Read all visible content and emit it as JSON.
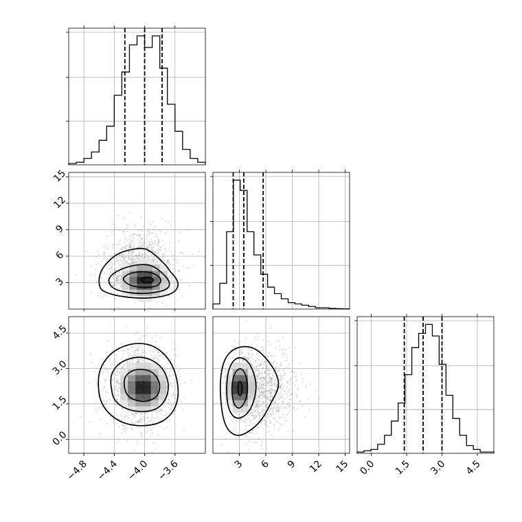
{
  "chart_data": {
    "type": "corner",
    "title": "",
    "grid": true,
    "parameters": [
      {
        "range": [
          -5.0,
          -3.2
        ],
        "ticks": [
          -4.8,
          -4.4,
          -4.0,
          -3.6
        ],
        "tick_labels": [
          "−4.8",
          "−4.4",
          "−4.0",
          "−3.6"
        ],
        "quantiles": [
          -4.26,
          -4.0,
          -3.77
        ],
        "hist": {
          "bin_edges": [
            -5.0,
            -4.9,
            -4.8,
            -4.7,
            -4.6,
            -4.5,
            -4.4,
            -4.3,
            -4.2,
            -4.1,
            -4.0,
            -3.9,
            -3.8,
            -3.7,
            -3.6,
            -3.5,
            -3.4,
            -3.3,
            -3.2
          ],
          "counts": [
            0.01,
            0.02,
            0.05,
            0.1,
            0.19,
            0.3,
            0.54,
            0.72,
            0.93,
            1.0,
            0.91,
            1.0,
            0.75,
            0.47,
            0.26,
            0.12,
            0.05,
            0.02
          ]
        }
      },
      {
        "range": [
          0.0,
          15.5
        ],
        "ticks": [
          3,
          6,
          9,
          12,
          15
        ],
        "tick_labels": [
          "3",
          "6",
          "9",
          "12",
          "15"
        ],
        "quantiles": [
          2.3,
          3.5,
          5.7
        ],
        "hist": {
          "bin_edges": [
            0.0,
            0.78,
            1.55,
            2.33,
            3.1,
            3.88,
            4.65,
            5.43,
            6.2,
            6.98,
            7.75,
            8.53,
            9.3,
            10.08,
            10.85,
            11.63,
            12.4,
            13.18,
            13.95,
            14.73,
            15.5
          ],
          "counts": [
            0.04,
            0.2,
            0.6,
            1.0,
            0.92,
            0.6,
            0.42,
            0.27,
            0.17,
            0.12,
            0.08,
            0.05,
            0.04,
            0.03,
            0.02,
            0.01,
            0.01,
            0.005,
            0.003,
            0.002
          ]
        }
      },
      {
        "range": [
          -0.6,
          5.2
        ],
        "ticks": [
          0.0,
          1.5,
          3.0,
          4.5
        ],
        "tick_labels": [
          "0.0",
          "1.5",
          "3.0",
          "4.5"
        ],
        "quantiles": [
          1.4,
          2.2,
          3.0
        ],
        "hist": {
          "bin_edges": [
            -0.6,
            -0.31,
            -0.02,
            0.27,
            0.56,
            0.85,
            1.14,
            1.43,
            1.72,
            2.01,
            2.3,
            2.59,
            2.88,
            3.17,
            3.46,
            3.75,
            4.04,
            4.33,
            4.62,
            4.91,
            5.2
          ],
          "counts": [
            0.01,
            0.02,
            0.03,
            0.07,
            0.14,
            0.25,
            0.39,
            0.61,
            0.82,
            0.93,
            1.0,
            0.91,
            0.69,
            0.45,
            0.27,
            0.14,
            0.06,
            0.03,
            0.01,
            0.01
          ]
        }
      }
    ],
    "panels": [
      {
        "x_param": 0,
        "y_param": 1,
        "scatter": {
          "x_mean": -4.05,
          "x_sd": 0.22,
          "y_mean": 3.6,
          "y_sd": 1.7,
          "n": 1400
        },
        "contours": [
          [
            [
              -4.6,
              2.6
            ],
            [
              -4.55,
              2.0
            ],
            [
              -4.35,
              1.45
            ],
            [
              -4.05,
              1.2
            ],
            [
              -3.8,
              1.35
            ],
            [
              -3.62,
              1.8
            ],
            [
              -3.55,
              2.6
            ],
            [
              -3.58,
              3.5
            ],
            [
              -3.66,
              4.2
            ],
            [
              -3.72,
              5.0
            ],
            [
              -3.92,
              6.6
            ],
            [
              -4.05,
              7.0
            ],
            [
              -4.35,
              6.4
            ],
            [
              -4.53,
              5.0
            ],
            [
              -4.6,
              3.8
            ]
          ],
          [
            [
              -4.48,
              3.0
            ],
            [
              -4.4,
              2.2
            ],
            [
              -4.15,
              1.75
            ],
            [
              -3.9,
              1.8
            ],
            [
              -3.7,
              2.2
            ],
            [
              -3.66,
              3.0
            ],
            [
              -3.75,
              4.0
            ],
            [
              -3.92,
              5.1
            ],
            [
              -4.15,
              5.0
            ],
            [
              -4.35,
              4.4
            ],
            [
              -4.46,
              3.7
            ]
          ],
          [
            [
              -4.3,
              3.4
            ],
            [
              -4.2,
              2.65
            ],
            [
              -4.0,
              2.4
            ],
            [
              -3.82,
              2.6
            ],
            [
              -3.77,
              3.4
            ],
            [
              -3.88,
              4.1
            ],
            [
              -4.05,
              4.3
            ],
            [
              -4.22,
              4.0
            ]
          ],
          [
            [
              -4.05,
              3.3
            ],
            [
              -4.0,
              2.95
            ],
            [
              -3.92,
              3.0
            ],
            [
              -3.87,
              3.3
            ],
            [
              -3.93,
              3.6
            ],
            [
              -4.0,
              3.65
            ]
          ]
        ],
        "density": {
          "x_center": -4.0,
          "y_center": 3.3,
          "sx": 0.18,
          "sy": 1.2,
          "cols": 10,
          "rows": 9
        }
      },
      {
        "x_param": 0,
        "y_param": 2,
        "scatter": {
          "x_mean": -4.05,
          "x_sd": 0.22,
          "y_mean": 2.2,
          "y_sd": 0.85,
          "n": 1400
        },
        "contours": [
          [
            [
              -4.62,
              2.4
            ],
            [
              -4.58,
              1.5
            ],
            [
              -4.4,
              0.85
            ],
            [
              -4.15,
              0.55
            ],
            [
              -3.85,
              0.6
            ],
            [
              -3.65,
              1.0
            ],
            [
              -3.55,
              1.7
            ],
            [
              -3.57,
              2.6
            ],
            [
              -3.67,
              3.4
            ],
            [
              -3.88,
              4.0
            ],
            [
              -4.15,
              4.1
            ],
            [
              -4.42,
              3.75
            ],
            [
              -4.58,
              3.1
            ]
          ],
          [
            [
              -4.45,
              2.3
            ],
            [
              -4.4,
              1.55
            ],
            [
              -4.15,
              1.15
            ],
            [
              -3.85,
              1.2
            ],
            [
              -3.7,
              1.75
            ],
            [
              -3.68,
              2.5
            ],
            [
              -3.8,
              3.2
            ],
            [
              -4.05,
              3.55
            ],
            [
              -4.32,
              3.3
            ],
            [
              -4.44,
              2.8
            ]
          ],
          [
            [
              -4.28,
              2.3
            ],
            [
              -4.22,
              1.75
            ],
            [
              -4.0,
              1.55
            ],
            [
              -3.82,
              1.8
            ],
            [
              -3.79,
              2.4
            ],
            [
              -3.9,
              2.9
            ],
            [
              -4.1,
              3.0
            ],
            [
              -4.25,
              2.75
            ]
          ]
        ],
        "density": {
          "x_center": -4.02,
          "y_center": 2.2,
          "sx": 0.18,
          "sy": 0.6,
          "cols": 10,
          "rows": 10
        }
      },
      {
        "x_param": 1,
        "y_param": 2,
        "scatter": {
          "x_mean": 4.0,
          "x_sd": 1.8,
          "y_mean": 2.2,
          "y_sd": 0.85,
          "n": 1400
        },
        "contours": [
          [
            [
              0.8,
              2.0
            ],
            [
              1.1,
              0.9
            ],
            [
              1.8,
              0.3
            ],
            [
              3.0,
              0.1
            ],
            [
              4.6,
              0.45
            ],
            [
              5.7,
              0.9
            ],
            [
              6.6,
              1.55
            ],
            [
              7.6,
              2.25
            ],
            [
              7.1,
              2.9
            ],
            [
              5.7,
              3.6
            ],
            [
              4.3,
              3.95
            ],
            [
              2.6,
              3.9
            ],
            [
              1.4,
              3.5
            ],
            [
              0.9,
              2.8
            ]
          ],
          [
            [
              1.5,
              2.2
            ],
            [
              1.7,
              1.3
            ],
            [
              2.5,
              0.85
            ],
            [
              3.6,
              0.95
            ],
            [
              4.5,
              1.4
            ],
            [
              5.0,
              2.2
            ],
            [
              4.6,
              2.9
            ],
            [
              3.8,
              3.4
            ],
            [
              2.7,
              3.5
            ],
            [
              1.8,
              3.05
            ]
          ],
          [
            [
              2.1,
              2.2
            ],
            [
              2.3,
              1.5
            ],
            [
              3.0,
              1.25
            ],
            [
              3.7,
              1.6
            ],
            [
              4.0,
              2.2
            ],
            [
              3.7,
              2.8
            ],
            [
              3.1,
              3.05
            ],
            [
              2.4,
              2.8
            ]
          ],
          [
            [
              2.8,
              2.15
            ],
            [
              2.95,
              1.85
            ],
            [
              3.2,
              1.85
            ],
            [
              3.35,
              2.15
            ],
            [
              3.2,
              2.45
            ],
            [
              2.95,
              2.45
            ]
          ]
        ],
        "density": {
          "x_center": 3.1,
          "y_center": 2.2,
          "sx": 0.9,
          "sy": 0.6,
          "cols": 8,
          "rows": 10
        }
      }
    ]
  }
}
